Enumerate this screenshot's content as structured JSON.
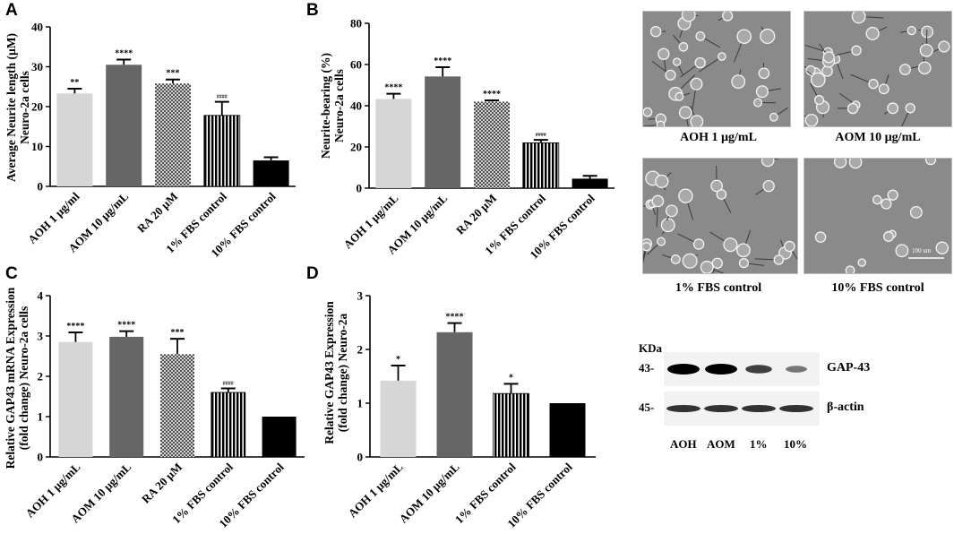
{
  "panels": {
    "a": "A",
    "b": "B",
    "c": "C",
    "d": "D"
  },
  "chart_data": [
    {
      "id": "A",
      "type": "bar",
      "categories": [
        "AOH 1 µg/ml",
        "AOM 10 µg/mL",
        "RA 20 µM",
        "1% FBS control",
        "10% FBS control"
      ],
      "values": [
        23.3,
        30.5,
        25.8,
        17.8,
        6.5
      ],
      "errors": [
        1.2,
        1.3,
        1.0,
        3.4,
        0.8
      ],
      "significance": [
        "**",
        "****",
        "***",
        "####",
        ""
      ],
      "ylabel_lines": [
        "Average Neurite length (µM)",
        "Neuro-2a cells"
      ],
      "ylim": [
        0,
        40
      ],
      "yticks": [
        "0",
        "10",
        "20",
        "30",
        "40"
      ]
    },
    {
      "id": "B",
      "type": "bar",
      "categories": [
        "AOH 1 µg/mL",
        "AOM 10 µg/mL",
        "RA 20 µM",
        "1% FBS control",
        "10% FBS control"
      ],
      "values": [
        43.3,
        54.2,
        42.0,
        22.0,
        4.6
      ],
      "errors": [
        2.5,
        4.5,
        0.6,
        1.4,
        1.4
      ],
      "significance": [
        "****",
        "****",
        "****",
        "####",
        ""
      ],
      "ylabel_lines": [
        "Neurite-bearing (%)",
        "Neuro-2a cells"
      ],
      "ylim": [
        0,
        80
      ],
      "yticks": [
        "0",
        "20",
        "40",
        "60",
        "80"
      ]
    },
    {
      "id": "C",
      "type": "bar",
      "categories": [
        "AOH 1 µg/mL",
        "AOM 10 µg/mL",
        "RA 20 µM",
        "1% FBS control",
        "10% FBS control"
      ],
      "values": [
        2.85,
        2.98,
        2.55,
        1.6,
        1.0
      ],
      "errors": [
        0.24,
        0.14,
        0.38,
        0.1,
        0.0
      ],
      "significance": [
        "****",
        "****",
        "***",
        "####",
        ""
      ],
      "ylabel_lines": [
        "Relative GAP43 mRNA Expression",
        "(fold change) Neuro-2a cells"
      ],
      "ylim": [
        0,
        4
      ],
      "yticks": [
        "0",
        "1",
        "2",
        "3",
        "4"
      ]
    },
    {
      "id": "D",
      "type": "bar",
      "categories": [
        "AOH 1 µg/mL",
        "AOM 10 µg/mL",
        "1% FBS control",
        "10% FBS control"
      ],
      "values": [
        1.42,
        2.32,
        1.18,
        1.0
      ],
      "errors": [
        0.28,
        0.17,
        0.18,
        0.0
      ],
      "significance": [
        "*",
        "****",
        "*",
        ""
      ],
      "ylabel_lines": [
        "Relative GAP43 Expression",
        "(fold change) Neuro-2a"
      ],
      "ylim": [
        0,
        3
      ],
      "yticks": [
        "0",
        "1",
        "2",
        "3"
      ]
    }
  ],
  "micrographs": {
    "captions": [
      "AOH 1 µg/mL",
      "AOM 10 µg/mL",
      "1% FBS control",
      "10% FBS control"
    ],
    "scale_bar": "100 um"
  },
  "blot": {
    "unit": "KDa",
    "markers": [
      "43-",
      "45-"
    ],
    "bands": [
      "GAP-43",
      "β-actin"
    ],
    "lanes": [
      "AOH",
      "AOM",
      "1%",
      "10%"
    ],
    "gap43_intensity": [
      1.0,
      1.0,
      0.6,
      0.25
    ],
    "actin_intensity": [
      1.0,
      1.0,
      1.0,
      1.0
    ]
  },
  "colors": {
    "bar_fills": [
      "#d6d6d6",
      "#666666",
      "crosshatch",
      "vertical-stripes",
      "#000000"
    ],
    "photo_bg": "#8a8a8a"
  }
}
